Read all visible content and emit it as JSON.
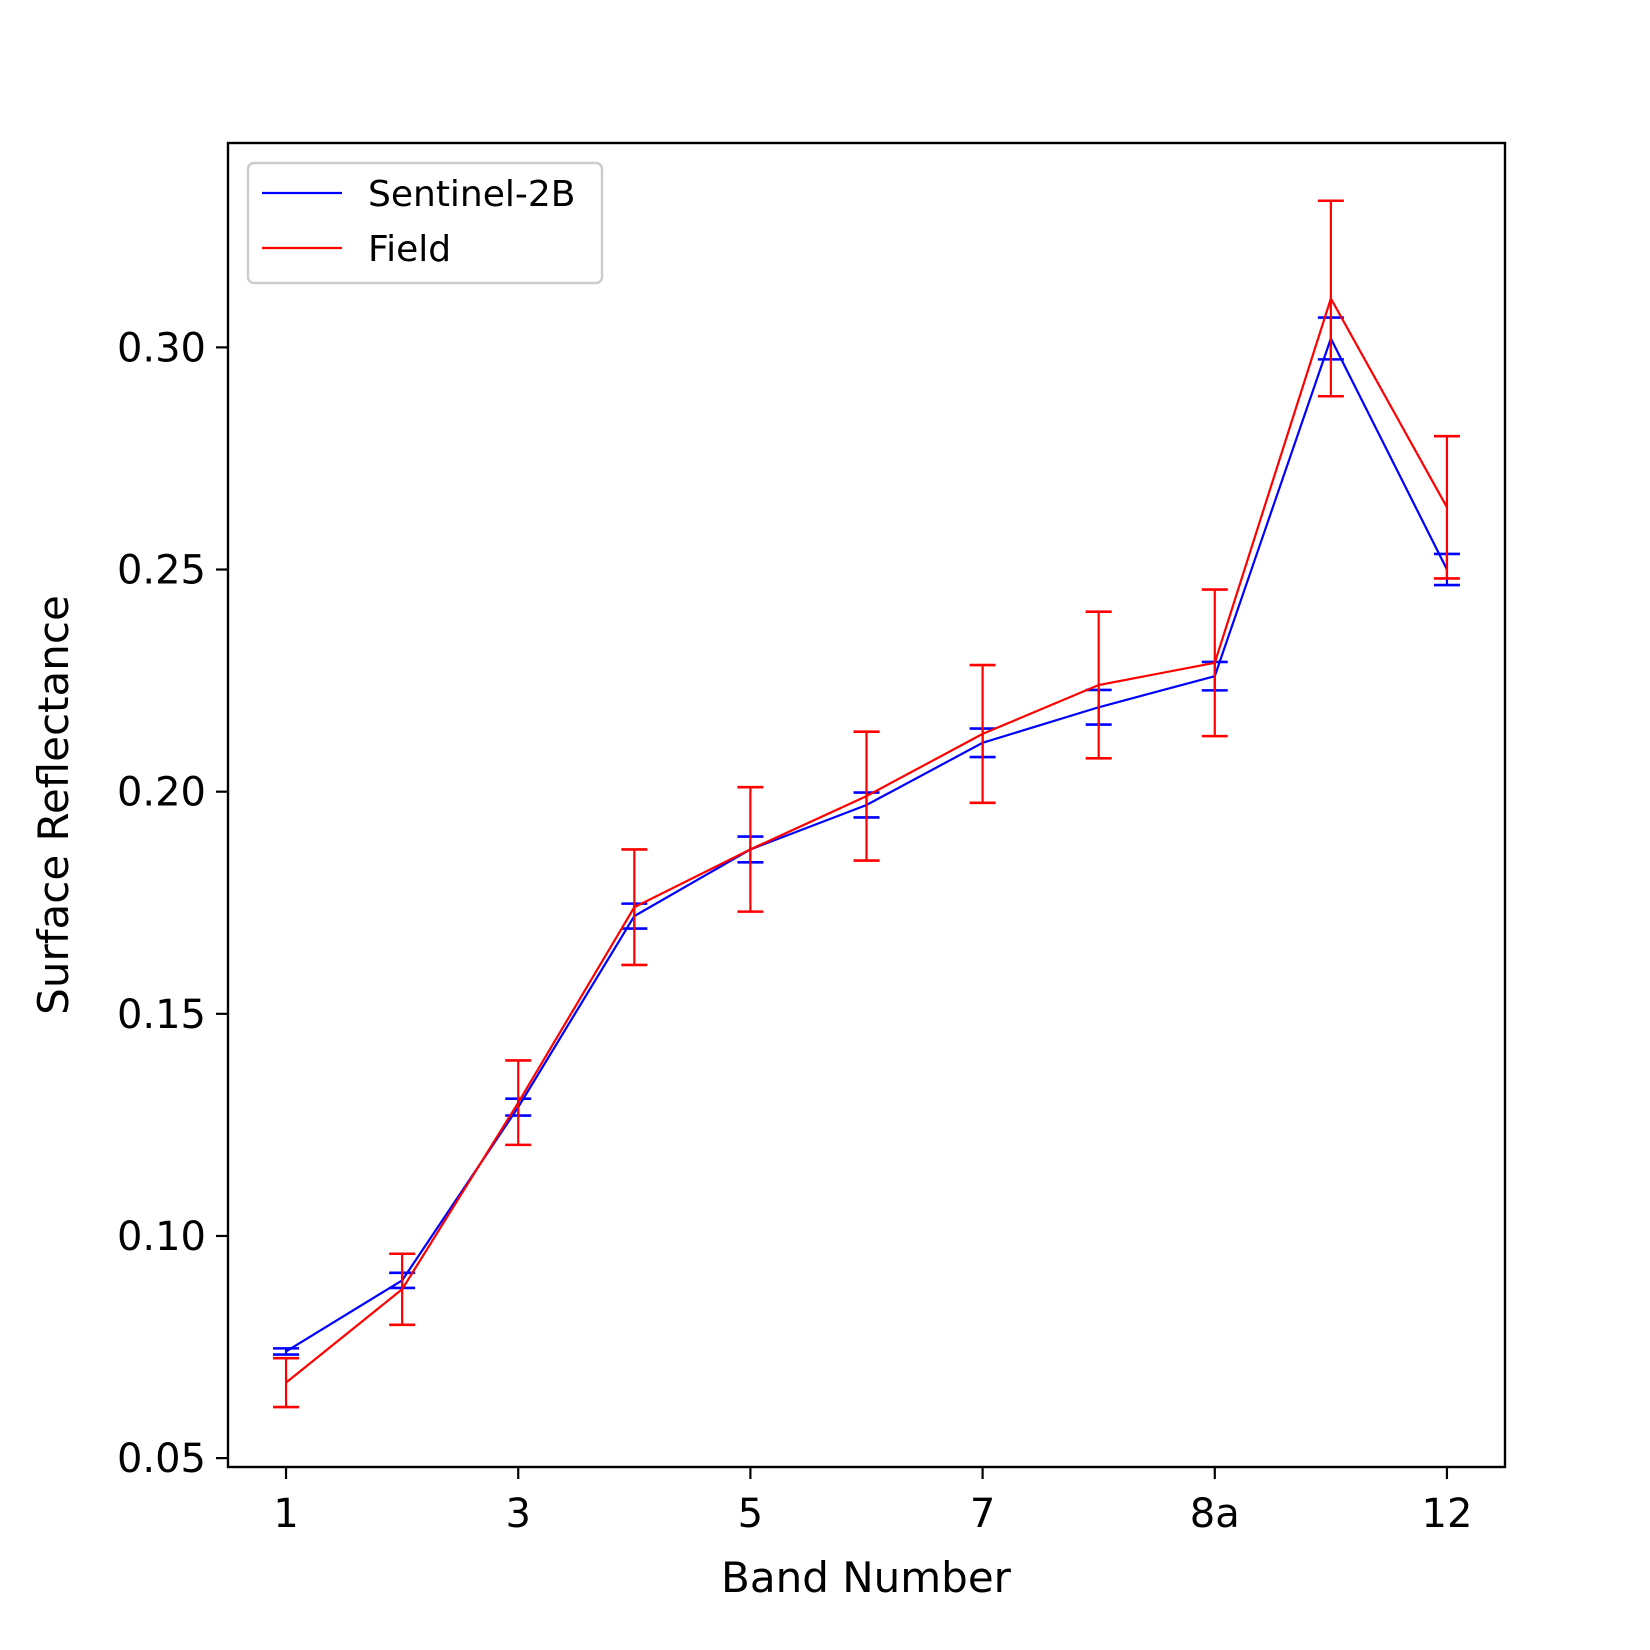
{
  "chart_data": {
    "type": "line",
    "title": "",
    "xlabel": "Band Number",
    "ylabel": "Surface Reflectance",
    "x_tick_labels": [
      "1",
      "3",
      "5",
      "7",
      "8a",
      "12"
    ],
    "x_tick_positions": [
      0,
      2,
      4,
      6,
      8,
      10
    ],
    "x": [
      0,
      1,
      2,
      3,
      4,
      5,
      6,
      7,
      8,
      9,
      10
    ],
    "ylim": [
      0.048,
      0.346
    ],
    "xlim": [
      -0.5,
      10.5
    ],
    "y_ticks": [
      0.05,
      0.1,
      0.15,
      0.2,
      0.25,
      0.3
    ],
    "y_tick_labels": [
      "0.05",
      "0.10",
      "0.15",
      "0.20",
      "0.25",
      "0.30"
    ],
    "grid": false,
    "legend_position": "top-left",
    "series": [
      {
        "name": "Sentinel-2B",
        "color": "#0000ff",
        "values": [
          0.074,
          0.09,
          0.129,
          0.172,
          0.187,
          0.197,
          0.211,
          0.219,
          0.226,
          0.302,
          0.25
        ],
        "errors": [
          0.0007,
          0.0017,
          0.0019,
          0.0028,
          0.0029,
          0.0028,
          0.0032,
          0.0039,
          0.0032,
          0.0047,
          0.0035
        ]
      },
      {
        "name": "Field",
        "color": "#ff0000",
        "values": [
          0.067,
          0.088,
          0.13,
          0.174,
          0.187,
          0.199,
          0.213,
          0.224,
          0.229,
          0.311,
          0.264
        ],
        "errors": [
          0.0055,
          0.008,
          0.0095,
          0.013,
          0.014,
          0.0145,
          0.0155,
          0.0165,
          0.0165,
          0.022,
          0.016
        ]
      }
    ]
  }
}
